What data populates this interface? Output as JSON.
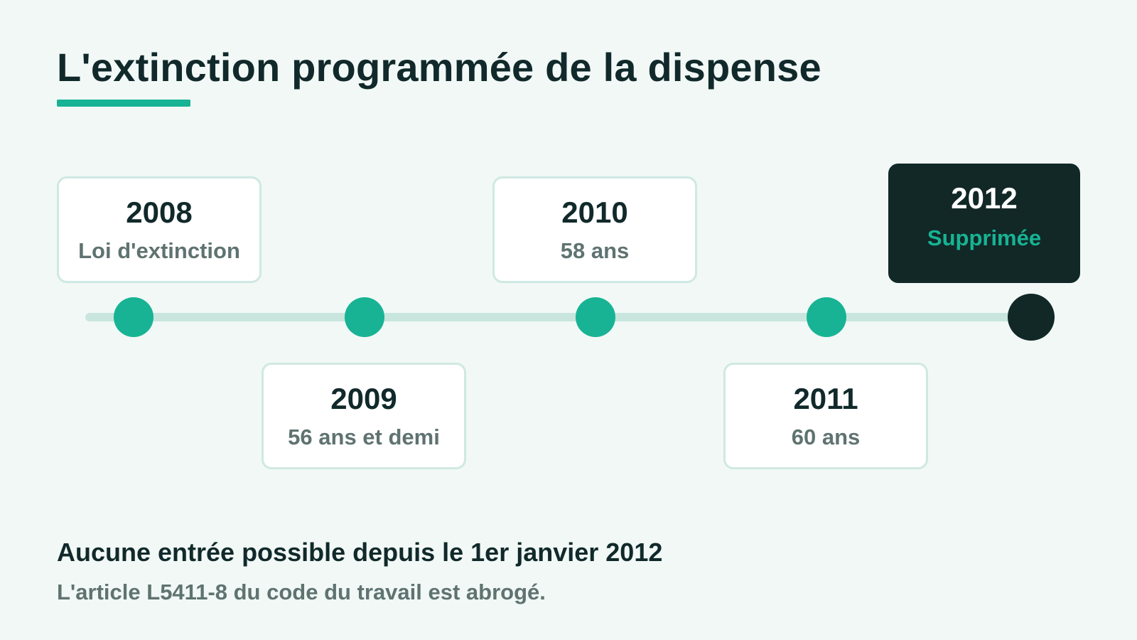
{
  "title": "L'extinction programmée de la dispense",
  "timeline": {
    "events": [
      {
        "year": "2008",
        "label": "Loi d'extinction"
      },
      {
        "year": "2009",
        "label": "56 ans et demi"
      },
      {
        "year": "2010",
        "label": "58 ans"
      },
      {
        "year": "2011",
        "label": "60 ans"
      },
      {
        "year": "2012",
        "label": "Supprimée"
      }
    ]
  },
  "colors": {
    "accent": "#17b394",
    "dark": "#112827",
    "track": "#c9e6de",
    "background": "#f1f8f6"
  },
  "footer": {
    "heading": "Aucune entrée possible depuis le 1er janvier 2012",
    "text": "L'article L5411-8 du code du travail est abrogé."
  }
}
